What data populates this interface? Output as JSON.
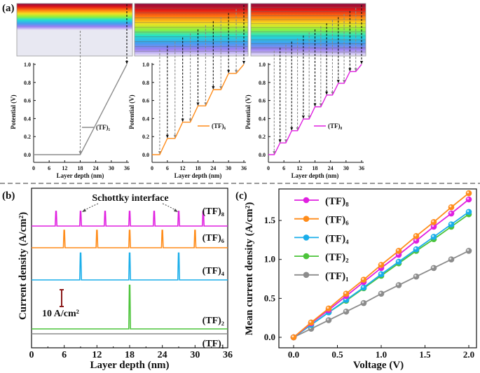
{
  "colors": {
    "TF1": "#8c8c8c",
    "TF2": "#4cc43a",
    "TF4": "#1aaeea",
    "TF6": "#ff8c1a",
    "TF8": "#e020e0",
    "scale_bar": "#8b1a1a"
  },
  "panel_labels": {
    "a": "(a)",
    "b": "(b)",
    "c": "(c)"
  },
  "chart_data": [
    {
      "type": "line",
      "panel": "a-1",
      "xlabel": "Layer depth (nm)",
      "ylabel": "Potential (V)",
      "xlim": [
        0,
        36
      ],
      "ylim": [
        0,
        1.0
      ],
      "xticks": [
        "0",
        "6",
        "12",
        "18",
        "24",
        "30",
        "36"
      ],
      "yticks": [
        "0.0",
        "0.2",
        "0.4",
        "0.6",
        "0.8",
        "1.0"
      ],
      "legend": "center-right",
      "series": [
        {
          "name": "(TF)₁",
          "color_key": "TF1",
          "x": [
            0,
            18,
            36
          ],
          "y": [
            0,
            0,
            1.0
          ]
        }
      ]
    },
    {
      "type": "line",
      "panel": "a-2",
      "xlabel": "Layer depth (nm)",
      "ylabel": "Potential (V)",
      "xlim": [
        0,
        36
      ],
      "ylim": [
        0,
        1.0
      ],
      "xticks": [
        "0",
        "6",
        "12",
        "18",
        "24",
        "30",
        "36"
      ],
      "yticks": [
        "0.0",
        "0.2",
        "0.4",
        "0.6",
        "0.8",
        "1.0"
      ],
      "legend": "center-right",
      "series": [
        {
          "name": "(TF)₆",
          "color_key": "TF6",
          "x": [
            0,
            3,
            6,
            9,
            12,
            15,
            18,
            21,
            24,
            27,
            30,
            33,
            36
          ],
          "y": [
            0,
            0,
            0.18,
            0.18,
            0.36,
            0.36,
            0.54,
            0.54,
            0.72,
            0.72,
            0.9,
            0.9,
            1.0
          ]
        }
      ]
    },
    {
      "type": "line",
      "panel": "a-3",
      "xlabel": "Layer depth (nm)",
      "ylabel": "Potential (V)",
      "xlim": [
        0,
        36
      ],
      "ylim": [
        0,
        1.0
      ],
      "xticks": [
        "0",
        "6",
        "12",
        "18",
        "24",
        "30",
        "36"
      ],
      "yticks": [
        "0.0",
        "0.2",
        "0.4",
        "0.6",
        "0.8",
        "1.0"
      ],
      "legend": "center-right",
      "series": [
        {
          "name": "(TF)₈",
          "color_key": "TF8",
          "x": [
            0,
            2.25,
            4.5,
            6.75,
            9,
            11.25,
            13.5,
            15.75,
            18,
            20.25,
            22.5,
            24.75,
            27,
            29.25,
            31.5,
            33.75,
            36
          ],
          "y": [
            0,
            0,
            0.13,
            0.13,
            0.265,
            0.265,
            0.395,
            0.395,
            0.53,
            0.53,
            0.66,
            0.66,
            0.79,
            0.79,
            0.92,
            0.92,
            1.0
          ]
        }
      ]
    },
    {
      "type": "line",
      "panel": "b",
      "xlabel": "Layer depth (nm)",
      "ylabel": "Current density (A/cm²)",
      "xlim": [
        0,
        36
      ],
      "xticks": [
        "0",
        "6",
        "12",
        "18",
        "24",
        "30",
        "36"
      ],
      "annotation": "Schottky interface",
      "scale_bar_label": "10 A/cm²",
      "scale_bar_value": 10,
      "series": [
        {
          "name": "(TF)₈",
          "color_key": "TF8",
          "peaks_x": [
            4.5,
            9,
            13.5,
            18,
            22.5,
            27,
            31.5
          ],
          "peak_height": 8.8
        },
        {
          "name": "(TF)₆",
          "color_key": "TF6",
          "peaks_x": [
            6,
            12,
            18,
            24,
            30
          ],
          "peak_height": 10.4
        },
        {
          "name": "(TF)₄",
          "color_key": "TF4",
          "peaks_x": [
            9,
            18,
            27
          ],
          "peak_height": 16
        },
        {
          "name": "(TF)₂",
          "color_key": "TF2",
          "peaks_x": [
            18
          ],
          "peak_height": 26
        },
        {
          "name": "(TF)₁",
          "color_key": "TF1",
          "peaks_x": [],
          "peak_height": 0
        }
      ]
    },
    {
      "type": "line",
      "panel": "c",
      "xlabel": "Voltage (V)",
      "ylabel": "Mean current density (A/cm²)",
      "xlim": [
        -0.1,
        2.05
      ],
      "ylim": [
        -0.07,
        1.9
      ],
      "xticks": [
        "0.0",
        "0.5",
        "1.0",
        "1.5",
        "2.0"
      ],
      "yticks": [
        "0.0",
        "0.5",
        "1.0",
        "1.5"
      ],
      "legend": "top-left",
      "x": [
        0,
        0.2,
        0.4,
        0.6,
        0.8,
        1.0,
        1.2,
        1.4,
        1.6,
        1.8,
        2.0
      ],
      "series": [
        {
          "name": "(TF)₈",
          "color_key": "TF8",
          "values": [
            0,
            0.18,
            0.35,
            0.53,
            0.71,
            0.89,
            1.06,
            1.24,
            1.42,
            1.59,
            1.77
          ]
        },
        {
          "name": "(TF)₆",
          "color_key": "TF6",
          "values": [
            0,
            0.19,
            0.37,
            0.56,
            0.74,
            0.93,
            1.11,
            1.3,
            1.48,
            1.67,
            1.85
          ]
        },
        {
          "name": "(TF)₄",
          "color_key": "TF4",
          "values": [
            0,
            0.16,
            0.32,
            0.48,
            0.64,
            0.81,
            0.97,
            1.13,
            1.29,
            1.45,
            1.61
          ]
        },
        {
          "name": "(TF)₂",
          "color_key": "TF2",
          "values": [
            0,
            0.16,
            0.32,
            0.47,
            0.63,
            0.79,
            0.95,
            1.11,
            1.26,
            1.42,
            1.58
          ]
        },
        {
          "name": "(TF)₁",
          "color_key": "TF1",
          "values": [
            0,
            0.11,
            0.22,
            0.33,
            0.44,
            0.56,
            0.67,
            0.78,
            0.89,
            1.0,
            1.11
          ]
        }
      ]
    }
  ]
}
